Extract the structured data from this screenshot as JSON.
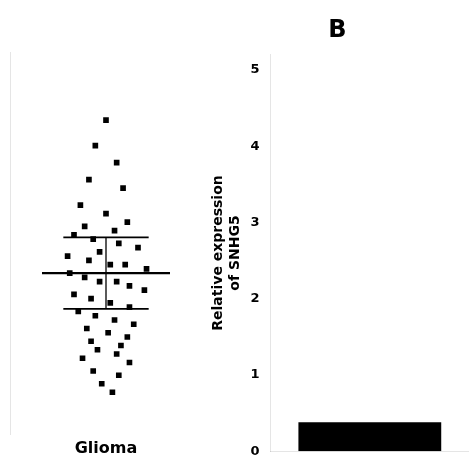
{
  "chart_data": [
    {
      "type": "scatter",
      "x": [
        0.0,
        -0.05,
        0.05,
        -0.08,
        0.08,
        -0.12,
        0.0,
        0.1,
        -0.1,
        0.04,
        -0.15,
        -0.06,
        0.06,
        0.15,
        -0.03,
        -0.18,
        -0.08,
        0.02,
        0.09,
        0.19,
        -0.17,
        -0.1,
        -0.03,
        0.05,
        0.11,
        0.18,
        -0.15,
        -0.07,
        0.02,
        0.11,
        -0.13,
        -0.05,
        0.04,
        0.13,
        -0.09,
        0.01,
        0.1,
        -0.07,
        0.07,
        -0.04,
        0.05,
        -0.11,
        0.11,
        -0.06,
        0.06,
        -0.02,
        0.03
      ],
      "values": [
        4.2,
        3.9,
        3.7,
        3.5,
        3.4,
        3.2,
        3.1,
        3.0,
        2.95,
        2.9,
        2.85,
        2.8,
        2.75,
        2.7,
        2.65,
        2.6,
        2.55,
        2.5,
        2.5,
        2.45,
        2.4,
        2.35,
        2.3,
        2.3,
        2.25,
        2.2,
        2.15,
        2.1,
        2.05,
        2.0,
        1.95,
        1.9,
        1.85,
        1.8,
        1.75,
        1.7,
        1.65,
        1.6,
        1.55,
        1.5,
        1.45,
        1.4,
        1.35,
        1.25,
        1.2,
        1.1,
        1.0
      ],
      "mean": 2.4,
      "error_low": 1.98,
      "error_high": 2.82,
      "xlabel": "Glioma",
      "marker": "square",
      "color": "#000000",
      "xlim": [
        -0.45,
        0.45
      ],
      "ylim": [
        0.5,
        5.0
      ],
      "tick_labels": false,
      "grid": false
    },
    {
      "type": "bar",
      "title": "B",
      "categories": [
        null
      ],
      "values": [
        0.38
      ],
      "color": "#000000",
      "ylabel": "Relative expression\nof SNHG5",
      "ylim": [
        0,
        5.2
      ],
      "yticks": [
        0,
        1,
        2,
        3,
        4,
        5
      ],
      "tick_labels": "y",
      "grid": false
    }
  ]
}
